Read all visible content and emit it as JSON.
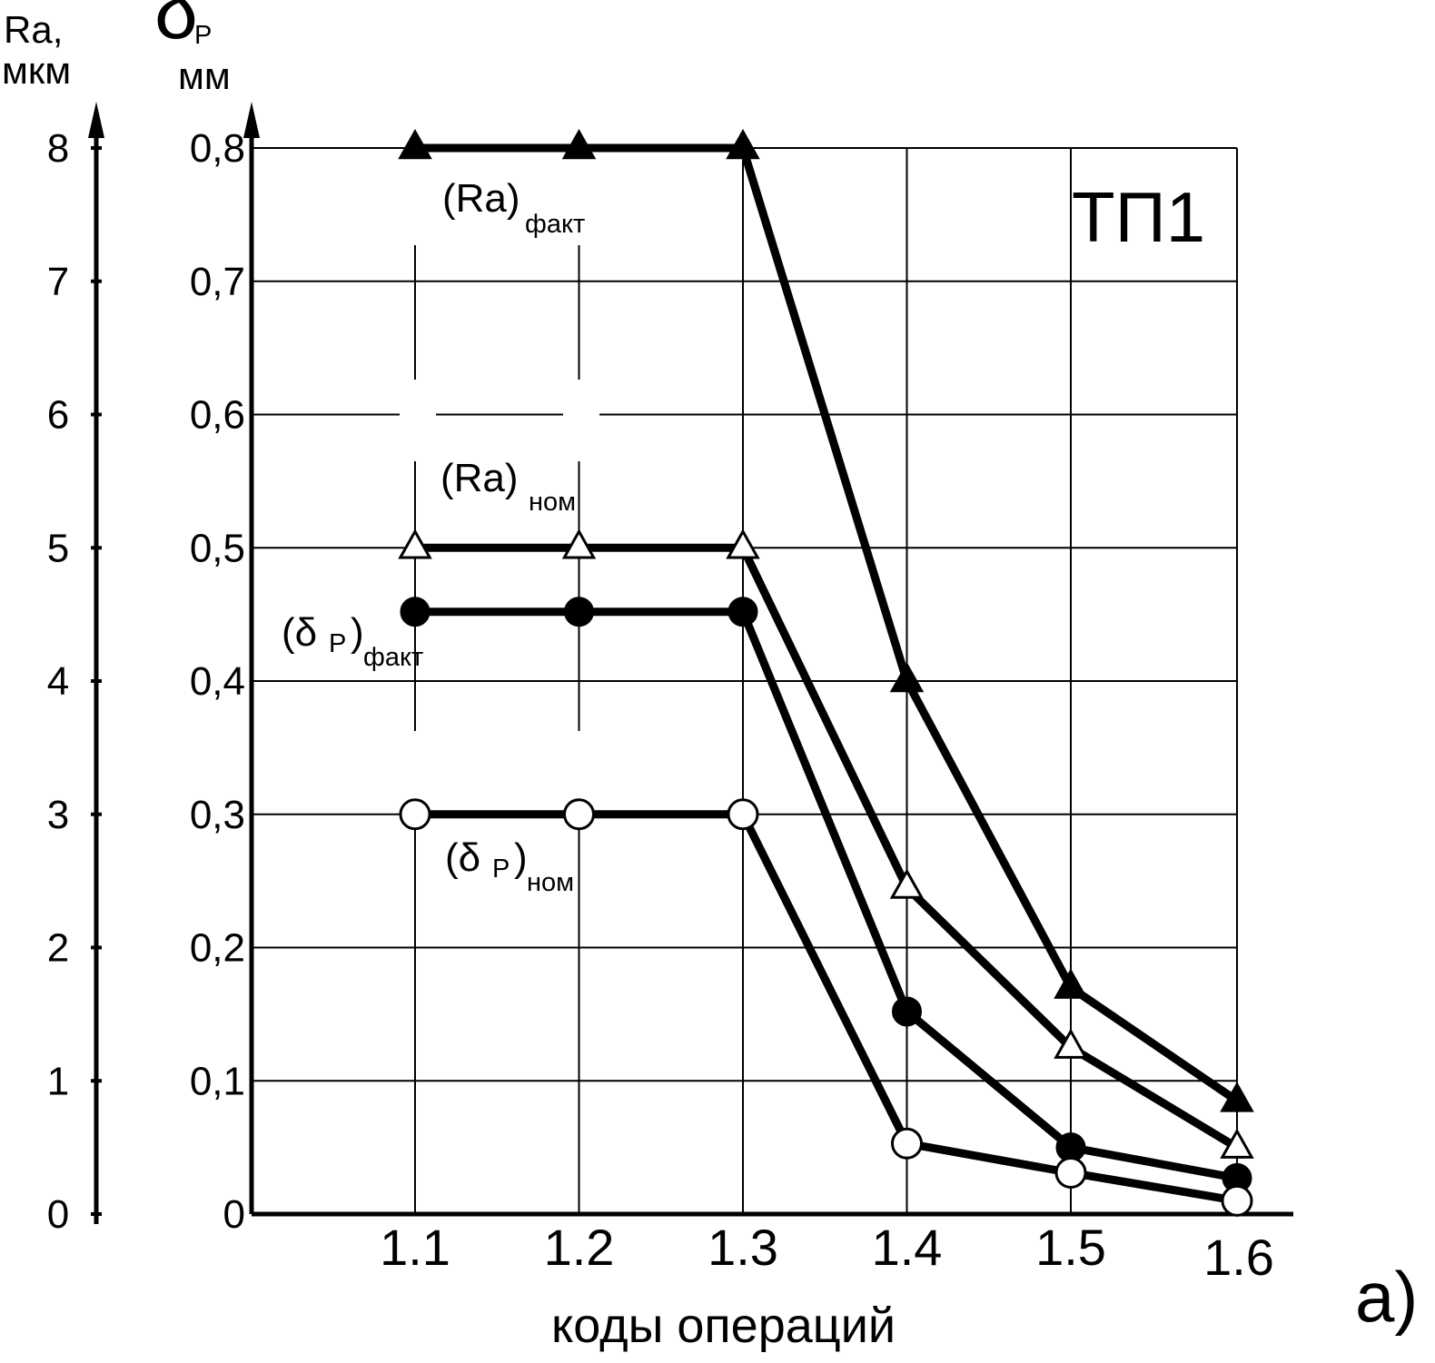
{
  "colors": {
    "line": "#000000",
    "grid": "#000000",
    "background": "#ffffff",
    "open_marker_fill": "#ffffff"
  },
  "chart_data": {
    "type": "line",
    "title": "",
    "panel_tag": "ТП1",
    "corner_label": "а)",
    "xlabel": "коды операций",
    "categories": [
      "1.1",
      "1.2",
      "1.3",
      "1.4",
      "1.5",
      "1.6"
    ],
    "y_left": {
      "label_line1": "Ra,",
      "label_line2": "мкм",
      "range": [
        0,
        8
      ],
      "ticks": [
        "0",
        "1",
        "2",
        "3",
        "4",
        "5",
        "6",
        "7",
        "8"
      ]
    },
    "y_right": {
      "label_symbol": "δ",
      "label_sub": "Р",
      "label_unit": "мм",
      "range": [
        0,
        0.8
      ],
      "ticks": [
        "0",
        "0,1",
        "0,2",
        "0,3",
        "0,4",
        "0,5",
        "0,6",
        "0,7",
        "0,8"
      ]
    },
    "grid": true,
    "series": [
      {
        "name": "(Ra)факт",
        "label_main": "(Ra)",
        "label_sub": "факт",
        "marker": "triangle-filled",
        "axis": "Ra",
        "values": [
          8,
          8,
          8,
          4,
          1.7,
          0.85
        ]
      },
      {
        "name": "(Ra)ном",
        "label_main": "(Ra)",
        "label_sub": "ном",
        "marker": "triangle-open",
        "axis": "Ra",
        "values": [
          5,
          5,
          5,
          2.45,
          1.25,
          0.5
        ]
      },
      {
        "name": "(δР)факт",
        "label_open": "(δ",
        "label_mid": "Р",
        "label_close": ")",
        "label_sub": "факт",
        "marker": "circle-filled",
        "axis": "δ",
        "values": [
          0.452,
          0.452,
          0.452,
          0.152,
          0.05,
          0.027
        ]
      },
      {
        "name": "(δР)ном",
        "label_open": "(δ",
        "label_mid": "Р",
        "label_close": ")",
        "label_sub": "ном",
        "marker": "circle-open",
        "axis": "δ",
        "values": [
          0.3,
          0.3,
          0.3,
          0.053,
          0.031,
          0.01
        ]
      }
    ]
  }
}
